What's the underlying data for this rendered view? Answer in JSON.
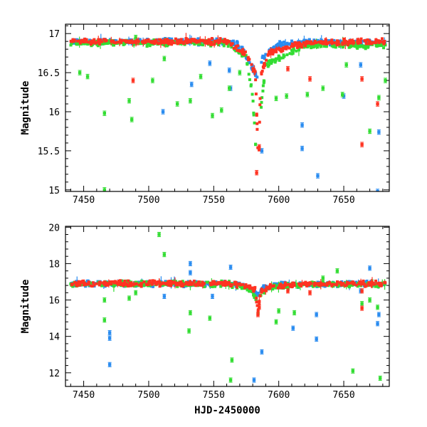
{
  "chart_data": [
    {
      "type": "scatter",
      "title": "",
      "xlabel": "",
      "ylabel": "Magnitude",
      "xlim": [
        7436,
        7685
      ],
      "ylim": [
        17.12,
        14.98
      ],
      "y_inverted": true,
      "grid": false,
      "xticks": [
        7450,
        7500,
        7550,
        7600,
        7650
      ],
      "xtick_labels": [
        "7450",
        "7500",
        "7550",
        "7600",
        "7650"
      ],
      "yticks": [
        15,
        15.5,
        16,
        16.5,
        17
      ],
      "ytick_labels": [
        "15",
        "15.5",
        "16",
        "16.5",
        "17"
      ],
      "series": [
        {
          "color": "#2a8cf0",
          "baseline": [
            [
              7440,
              16.9
            ],
            [
              7560,
              16.9
            ],
            [
              7570,
              16.85
            ],
            [
              7578,
              16.62
            ],
            [
              7583,
              16.44
            ],
            [
              7588,
              16.7
            ],
            [
              7600,
              16.86
            ],
            [
              7620,
              16.9
            ],
            [
              7682,
              16.88
            ]
          ],
          "outliers": [
            [
              7511,
              16.0
            ],
            [
              7533,
              16.35
            ],
            [
              7547,
              16.62
            ],
            [
              7562,
              16.53
            ],
            [
              7563,
              16.3
            ],
            [
              7587,
              15.5
            ],
            [
              7618,
              15.53
            ],
            [
              7618,
              15.83
            ],
            [
              7630,
              15.18
            ],
            [
              7650,
              16.2
            ],
            [
              7663,
              16.6
            ],
            [
              7676,
              14.98
            ],
            [
              7677,
              15.74
            ]
          ]
        },
        {
          "color": "#33dd33",
          "baseline": [
            [
              7440,
              16.88
            ],
            [
              7560,
              16.88
            ],
            [
              7575,
              16.7
            ],
            [
              7580,
              16.2
            ],
            [
              7584,
              15.05
            ],
            [
              7586,
              16.0
            ],
            [
              7590,
              16.6
            ],
            [
              7620,
              16.85
            ],
            [
              7682,
              16.85
            ]
          ],
          "outliers": [
            [
              7447,
              16.5
            ],
            [
              7453,
              16.45
            ],
            [
              7466,
              15.0
            ],
            [
              7466,
              15.98
            ],
            [
              7485,
              16.14
            ],
            [
              7487,
              15.9
            ],
            [
              7490,
              16.95
            ],
            [
              7503,
              16.4
            ],
            [
              7512,
              16.68
            ],
            [
              7522,
              16.1
            ],
            [
              7532,
              16.14
            ],
            [
              7540,
              16.45
            ],
            [
              7549,
              15.95
            ],
            [
              7556,
              16.02
            ],
            [
              7562,
              16.3
            ],
            [
              7570,
              16.5
            ],
            [
              7598,
              16.17
            ],
            [
              7606,
              16.2
            ],
            [
              7622,
              16.22
            ],
            [
              7634,
              16.3
            ],
            [
              7649,
              16.22
            ],
            [
              7652,
              16.6
            ],
            [
              7670,
              15.75
            ],
            [
              7677,
              16.18
            ],
            [
              7682,
              16.4
            ]
          ]
        },
        {
          "color": "#ff3322",
          "baseline": [
            [
              7440,
              16.9
            ],
            [
              7560,
              16.9
            ],
            [
              7575,
              16.75
            ],
            [
              7582,
              16.5
            ],
            [
              7584,
              15.5
            ],
            [
              7584.5,
              15.25
            ],
            [
              7586,
              16.45
            ],
            [
              7592,
              16.75
            ],
            [
              7620,
              16.88
            ],
            [
              7682,
              16.9
            ]
          ],
          "outliers": [
            [
              7488,
              16.4
            ],
            [
              7522,
              16.9
            ],
            [
              7583,
              15.22
            ],
            [
              7585,
              15.55
            ],
            [
              7607,
              16.55
            ],
            [
              7624,
              16.42
            ],
            [
              7664,
              15.58
            ],
            [
              7664,
              16.42
            ],
            [
              7676,
              16.1
            ]
          ]
        }
      ]
    },
    {
      "type": "scatter",
      "title": "",
      "xlabel": "HJD-2450000",
      "ylabel": "Magnitude",
      "xlim": [
        7436,
        7685
      ],
      "ylim": [
        20.05,
        11.25
      ],
      "y_inverted": true,
      "grid": false,
      "xticks": [
        7450,
        7500,
        7550,
        7600,
        7650
      ],
      "xtick_labels": [
        "7450",
        "7500",
        "7550",
        "7600",
        "7650"
      ],
      "yticks": [
        12,
        14,
        16,
        18,
        20
      ],
      "ytick_labels": [
        "12",
        "14",
        "16",
        "18",
        "20"
      ],
      "series": [
        {
          "color": "#2a8cf0",
          "baseline": [
            [
              7440,
              16.9
            ],
            [
              7560,
              16.9
            ],
            [
              7572,
              16.8
            ],
            [
              7580,
              16.55
            ],
            [
              7584,
              16.3
            ],
            [
              7588,
              16.7
            ],
            [
              7600,
              16.85
            ],
            [
              7682,
              16.88
            ]
          ],
          "outliers": [
            [
              7470,
              12.45
            ],
            [
              7470,
              13.9
            ],
            [
              7470,
              14.2
            ],
            [
              7512,
              16.2
            ],
            [
              7532,
              17.5
            ],
            [
              7532,
              18.0
            ],
            [
              7549,
              16.2
            ],
            [
              7563,
              17.8
            ],
            [
              7581,
              11.6
            ],
            [
              7587,
              13.15
            ],
            [
              7611,
              14.45
            ],
            [
              7629,
              13.85
            ],
            [
              7629,
              15.2
            ],
            [
              7663,
              16.5
            ],
            [
              7670,
              17.75
            ],
            [
              7676,
              14.7
            ],
            [
              7677,
              15.2
            ]
          ]
        },
        {
          "color": "#33dd33",
          "baseline": [
            [
              7440,
              16.88
            ],
            [
              7560,
              16.88
            ],
            [
              7578,
              16.6
            ],
            [
              7583,
              16.0
            ],
            [
              7584,
              15.1
            ],
            [
              7586,
              16.2
            ],
            [
              7592,
              16.7
            ],
            [
              7620,
              16.85
            ],
            [
              7682,
              16.85
            ]
          ],
          "outliers": [
            [
              7466,
              14.9
            ],
            [
              7466,
              16.0
            ],
            [
              7485,
              16.1
            ],
            [
              7490,
              16.4
            ],
            [
              7508,
              19.6
            ],
            [
              7512,
              18.5
            ],
            [
              7531,
              14.3
            ],
            [
              7532,
              15.3
            ],
            [
              7547,
              15.0
            ],
            [
              7563,
              11.6
            ],
            [
              7564,
              12.7
            ],
            [
              7598,
              14.8
            ],
            [
              7600,
              15.4
            ],
            [
              7612,
              15.3
            ],
            [
              7634,
              17.2
            ],
            [
              7645,
              17.6
            ],
            [
              7657,
              12.1
            ],
            [
              7664,
              15.8
            ],
            [
              7670,
              16.0
            ],
            [
              7676,
              15.6
            ],
            [
              7678,
              11.7
            ]
          ]
        },
        {
          "color": "#ff3322",
          "baseline": [
            [
              7440,
              16.9
            ],
            [
              7560,
              16.9
            ],
            [
              7575,
              16.8
            ],
            [
              7582,
              16.55
            ],
            [
              7584,
              15.3
            ],
            [
              7586,
              16.4
            ],
            [
              7592,
              16.75
            ],
            [
              7620,
              16.88
            ],
            [
              7682,
              16.9
            ]
          ],
          "outliers": [
            [
              7584,
              15.2
            ],
            [
              7585,
              15.6
            ],
            [
              7607,
              16.5
            ],
            [
              7624,
              16.4
            ],
            [
              7664,
              15.55
            ],
            [
              7664,
              16.5
            ]
          ]
        }
      ]
    }
  ]
}
